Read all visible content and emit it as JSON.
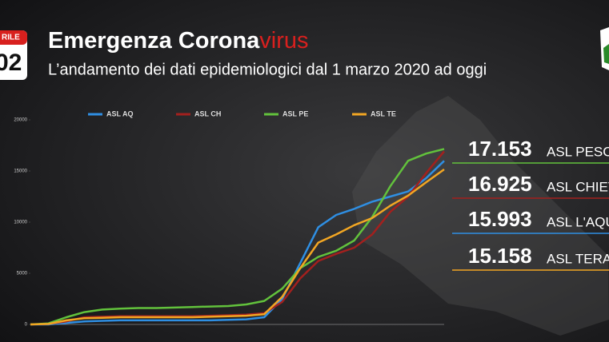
{
  "header": {
    "calendar_month": "RILE",
    "calendar_day": "02",
    "title": "Emergenza Corona",
    "title_highlight": "virus",
    "subtitle": "L’andamento dei dati epidemiologici dal 1 marzo 2020 ad oggi"
  },
  "chart_data": {
    "type": "line",
    "categories": [
      null,
      null,
      null,
      null,
      null,
      null,
      null,
      null,
      null,
      null,
      null,
      null,
      null,
      null,
      null,
      null,
      null,
      null,
      null,
      null,
      null,
      null,
      null,
      null
    ],
    "ylim": [
      0,
      20000
    ],
    "yticks": [
      0,
      5000,
      10000,
      15000,
      20000
    ],
    "grid": false,
    "series": [
      {
        "name": "ASL AQ",
        "color": "#2f8fe3",
        "values": [
          0,
          0,
          150,
          300,
          350,
          400,
          400,
          400,
          400,
          400,
          400,
          450,
          500,
          700,
          2500,
          6000,
          9500,
          10700,
          11300,
          12000,
          12500,
          13000,
          14300,
          15993
        ]
      },
      {
        "name": "ASL CH",
        "color": "#a3201e",
        "values": [
          0,
          50,
          300,
          700,
          750,
          800,
          800,
          800,
          800,
          800,
          850,
          900,
          950,
          1100,
          2200,
          4500,
          6200,
          6900,
          7500,
          8800,
          11000,
          12500,
          14800,
          16925
        ]
      },
      {
        "name": "ASL PE",
        "color": "#62c23c",
        "values": [
          0,
          100,
          700,
          1200,
          1450,
          1550,
          1600,
          1600,
          1650,
          1700,
          1750,
          1800,
          1950,
          2300,
          3500,
          5500,
          6600,
          7200,
          8200,
          10500,
          13500,
          16000,
          16700,
          17153
        ]
      },
      {
        "name": "ASL TE",
        "color": "#f2a623",
        "values": [
          0,
          50,
          400,
          600,
          650,
          700,
          700,
          700,
          700,
          700,
          750,
          800,
          850,
          1000,
          2700,
          5500,
          8000,
          8800,
          9700,
          10400,
          11600,
          12600,
          13900,
          15158
        ]
      }
    ]
  },
  "callouts": [
    {
      "value": "17.153",
      "label": "ASL PESC",
      "color": "#62c23c"
    },
    {
      "value": "16.925",
      "label": "ASL CHIET",
      "color": "#a3201e"
    },
    {
      "value": "15.993",
      "label": "ASL L'AQU",
      "color": "#2f8fe3"
    },
    {
      "value": "15.158",
      "label": "ASL TERA",
      "color": "#f2a623"
    }
  ]
}
